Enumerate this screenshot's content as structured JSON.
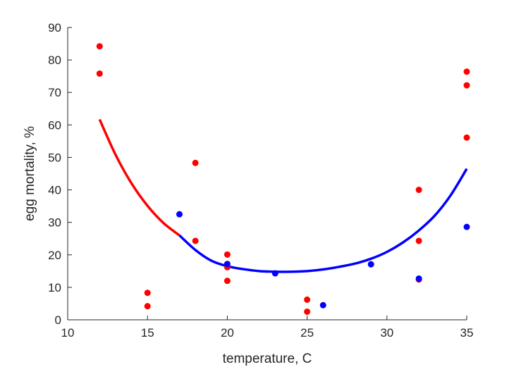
{
  "chart_data": {
    "type": "scatter",
    "xlabel": "temperature, C",
    "ylabel": "egg mortality, %",
    "xlim": [
      10,
      35
    ],
    "ylim": [
      0,
      90
    ],
    "xticks": [
      10,
      15,
      20,
      25,
      30,
      35
    ],
    "yticks": [
      0,
      10,
      20,
      30,
      40,
      50,
      60,
      70,
      80,
      90
    ],
    "grid": false,
    "colors": {
      "red": "#ff0000",
      "blue": "#0000ff",
      "axis": "#262626"
    },
    "series": [
      {
        "color": "#ff0000",
        "points": [
          [
            12,
            84.2
          ],
          [
            12,
            75.8
          ],
          [
            15,
            8.3
          ],
          [
            15,
            4.2
          ],
          [
            18,
            48.3
          ],
          [
            18,
            24.3
          ],
          [
            20,
            20.1
          ],
          [
            20,
            16.2
          ],
          [
            20,
            12.0
          ],
          [
            25,
            6.2
          ],
          [
            25,
            2.5
          ],
          [
            32,
            40.0
          ],
          [
            32,
            24.3
          ],
          [
            32,
            12.4
          ],
          [
            35,
            76.4
          ],
          [
            35,
            72.2
          ],
          [
            35,
            56.1
          ]
        ]
      },
      {
        "color": "#0000ff",
        "points": [
          [
            17,
            32.5
          ],
          [
            20,
            17.2
          ],
          [
            23,
            14.3
          ],
          [
            26,
            4.5
          ],
          [
            29,
            17.1
          ],
          [
            32,
            12.7
          ],
          [
            35,
            28.6
          ]
        ]
      }
    ],
    "fit_curve": {
      "segments": [
        {
          "color": "#ff0000",
          "x": [
            12,
            13,
            14,
            15,
            16,
            17
          ],
          "y": [
            61.7,
            50.8,
            42.0,
            35.1,
            29.8,
            26.0
          ]
        },
        {
          "color": "#0000ff",
          "x": [
            17,
            18,
            19,
            20,
            21,
            22,
            23,
            24,
            25,
            26,
            27,
            28,
            29,
            30,
            31,
            32,
            33,
            34,
            35
          ],
          "y": [
            26.0,
            21.5,
            18.2,
            16.5,
            15.6,
            15.0,
            14.8,
            14.8,
            15.0,
            15.5,
            16.3,
            17.3,
            18.8,
            20.9,
            23.8,
            27.5,
            32.1,
            38.4,
            46.5
          ]
        }
      ]
    }
  }
}
